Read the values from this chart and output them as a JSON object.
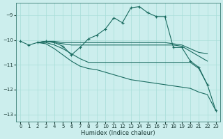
{
  "xlabel": "Humidex (Indice chaleur)",
  "bg_color": "#cceeed",
  "line_color": "#1a6b60",
  "xlim": [
    -0.5,
    23.5
  ],
  "ylim": [
    -13.3,
    -8.5
  ],
  "yticks": [
    -13,
    -12,
    -11,
    -10,
    -9
  ],
  "xticks": [
    0,
    1,
    2,
    3,
    4,
    5,
    6,
    7,
    8,
    9,
    10,
    11,
    12,
    13,
    14,
    15,
    16,
    17,
    18,
    19,
    20,
    21,
    22,
    23
  ],
  "series": [
    {
      "x": [
        0,
        1,
        2,
        3,
        4,
        5,
        6,
        7,
        8,
        9,
        10,
        11,
        12,
        13,
        14,
        15,
        16,
        17,
        18,
        19,
        20,
        21,
        22,
        23
      ],
      "y": [
        -10.05,
        -10.2,
        -10.1,
        -10.05,
        -10.1,
        -10.25,
        -10.6,
        -10.3,
        -9.95,
        -9.8,
        -9.55,
        -9.1,
        -9.3,
        -8.7,
        -8.65,
        -8.9,
        -9.05,
        -9.05,
        -10.3,
        -10.3,
        -10.85,
        -11.1,
        -11.8,
        -12.85
      ],
      "marker": true
    },
    {
      "x": [
        2,
        3,
        4,
        5,
        6,
        7,
        8,
        9,
        10,
        11,
        12,
        13,
        14,
        15,
        16,
        17,
        18,
        19,
        20,
        21,
        22
      ],
      "y": [
        -10.1,
        -10.05,
        -10.05,
        -10.1,
        -10.1,
        -10.1,
        -10.1,
        -10.1,
        -10.1,
        -10.1,
        -10.1,
        -10.1,
        -10.1,
        -10.1,
        -10.1,
        -10.1,
        -10.15,
        -10.2,
        -10.35,
        -10.5,
        -10.55
      ],
      "marker": false
    },
    {
      "x": [
        2,
        3,
        4,
        5,
        6,
        7,
        8,
        9,
        10,
        11,
        12,
        13,
        14,
        15,
        16,
        17,
        18,
        19,
        20,
        21,
        22
      ],
      "y": [
        -10.1,
        -10.05,
        -10.1,
        -10.15,
        -10.2,
        -10.2,
        -10.2,
        -10.2,
        -10.2,
        -10.2,
        -10.2,
        -10.2,
        -10.2,
        -10.2,
        -10.2,
        -10.2,
        -10.2,
        -10.25,
        -10.45,
        -10.65,
        -10.85
      ],
      "marker": false
    },
    {
      "x": [
        2,
        3,
        4,
        5,
        6,
        7,
        8,
        9,
        10,
        11,
        12,
        13,
        14,
        15,
        16,
        17,
        18,
        19,
        20,
        21,
        22
      ],
      "y": [
        -10.1,
        -10.1,
        -10.2,
        -10.35,
        -10.55,
        -10.75,
        -10.9,
        -10.9,
        -10.9,
        -10.9,
        -10.9,
        -10.9,
        -10.9,
        -10.9,
        -10.9,
        -10.9,
        -10.9,
        -10.9,
        -10.9,
        -11.15,
        -11.8
      ],
      "marker": false
    },
    {
      "x": [
        2,
        3,
        4,
        5,
        6,
        7,
        8,
        9,
        10,
        11,
        12,
        13,
        14,
        15,
        16,
        17,
        18,
        19,
        20,
        21,
        22,
        23
      ],
      "y": [
        -10.1,
        -10.15,
        -10.35,
        -10.6,
        -10.85,
        -11.05,
        -11.15,
        -11.2,
        -11.3,
        -11.4,
        -11.5,
        -11.6,
        -11.65,
        -11.7,
        -11.75,
        -11.8,
        -11.85,
        -11.9,
        -11.95,
        -12.1,
        -12.2,
        -12.85
      ],
      "marker": false
    }
  ]
}
